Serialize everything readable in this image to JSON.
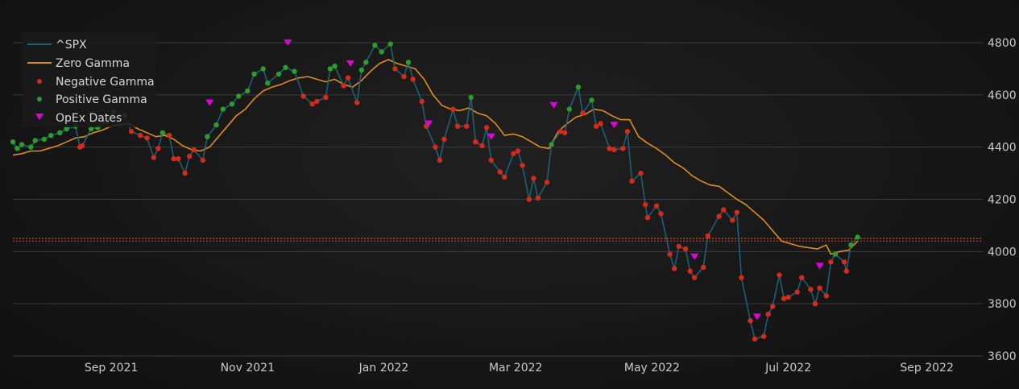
{
  "chart_data": {
    "type": "line",
    "title": "",
    "xlabel": "",
    "ylabel": "",
    "x_ticks": [
      "Sep 2021",
      "Nov 2021",
      "Jan 2022",
      "Mar 2022",
      "May 2022",
      "Jul 2022",
      "Sep 2022"
    ],
    "x_tick_dates": [
      "2021-09-01",
      "2021-11-01",
      "2022-01-01",
      "2022-03-01",
      "2022-05-01",
      "2022-07-01",
      "2022-09-01"
    ],
    "y_ticks": [
      3600,
      3800,
      4000,
      4200,
      4400,
      4600,
      4800
    ],
    "xlim": [
      "2021-07-19",
      "2022-09-26"
    ],
    "ylim": [
      3600,
      4840
    ],
    "grid": true,
    "legend_position": "top-left",
    "colors": {
      "spx": "#1f5f73",
      "zero_gamma": "#e08c1c",
      "negative": "#d62a1a",
      "positive": "#2a9d2a",
      "opex": "#e000e0",
      "hline_red": "#c0392b",
      "hline_orange": "#d35400"
    },
    "hlines": [
      {
        "value": 4040
      },
      {
        "value": 4050
      }
    ],
    "legend": [
      "^SPX",
      "Zero Gamma",
      "Negative Gamma",
      "Positive Gamma",
      "OpEx Dates"
    ],
    "spx": {
      "name": "^SPX",
      "points": [
        [
          "2021-07-19",
          4420,
          "P"
        ],
        [
          "2021-07-21",
          4395,
          "P"
        ],
        [
          "2021-07-23",
          4410,
          "P"
        ],
        [
          "2021-07-27",
          4400,
          "P"
        ],
        [
          "2021-07-29",
          4425,
          "P"
        ],
        [
          "2021-08-02",
          4430,
          "P"
        ],
        [
          "2021-08-05",
          4445,
          "P"
        ],
        [
          "2021-08-09",
          4455,
          "P"
        ],
        [
          "2021-08-12",
          4470,
          "P"
        ],
        [
          "2021-08-16",
          4480,
          "P"
        ],
        [
          "2021-08-18",
          4400,
          "N"
        ],
        [
          "2021-08-19",
          4405,
          "N"
        ],
        [
          "2021-08-23",
          4470,
          "P"
        ],
        [
          "2021-08-26",
          4475,
          "P"
        ],
        [
          "2021-08-30",
          4500,
          "P"
        ],
        [
          "2021-09-02",
          4535,
          "P"
        ],
        [
          "2021-09-07",
          4520,
          "P"
        ],
        [
          "2021-09-10",
          4460,
          "N"
        ],
        [
          "2021-09-14",
          4445,
          "N"
        ],
        [
          "2021-09-17",
          4435,
          "N"
        ],
        [
          "2021-09-20",
          4360,
          "N"
        ],
        [
          "2021-09-22",
          4395,
          "N"
        ],
        [
          "2021-09-24",
          4455,
          "P"
        ],
        [
          "2021-09-27",
          4445,
          "N"
        ],
        [
          "2021-09-29",
          4355,
          "N"
        ],
        [
          "2021-10-01",
          4355,
          "N"
        ],
        [
          "2021-10-04",
          4300,
          "N"
        ],
        [
          "2021-10-06",
          4365,
          "N"
        ],
        [
          "2021-10-08",
          4390,
          "N"
        ],
        [
          "2021-10-12",
          4350,
          "N"
        ],
        [
          "2021-10-14",
          4440,
          "P"
        ],
        [
          "2021-10-18",
          4485,
          "P"
        ],
        [
          "2021-10-21",
          4545,
          "P"
        ],
        [
          "2021-10-25",
          4565,
          "P"
        ],
        [
          "2021-10-28",
          4595,
          "P"
        ],
        [
          "2021-11-01",
          4615,
          "P"
        ],
        [
          "2021-11-04",
          4680,
          "P"
        ],
        [
          "2021-11-08",
          4700,
          "P"
        ],
        [
          "2021-11-10",
          4645,
          "P"
        ],
        [
          "2021-11-15",
          4680,
          "P"
        ],
        [
          "2021-11-18",
          4705,
          "P"
        ],
        [
          "2021-11-22",
          4690,
          "P"
        ],
        [
          "2021-11-26",
          4595,
          "N"
        ],
        [
          "2021-11-30",
          4565,
          "N"
        ],
        [
          "2021-12-02",
          4575,
          "N"
        ],
        [
          "2021-12-06",
          4590,
          "N"
        ],
        [
          "2021-12-08",
          4700,
          "P"
        ],
        [
          "2021-12-10",
          4710,
          "P"
        ],
        [
          "2021-12-14",
          4635,
          "N"
        ],
        [
          "2021-12-16",
          4665,
          "N"
        ],
        [
          "2021-12-20",
          4570,
          "N"
        ],
        [
          "2021-12-22",
          4695,
          "P"
        ],
        [
          "2021-12-24",
          4725,
          "P"
        ],
        [
          "2021-12-28",
          4790,
          "P"
        ],
        [
          "2021-12-31",
          4765,
          "P"
        ],
        [
          "2022-01-04",
          4795,
          "P"
        ],
        [
          "2022-01-06",
          4700,
          "N"
        ],
        [
          "2022-01-10",
          4670,
          "N"
        ],
        [
          "2022-01-12",
          4725,
          "P"
        ],
        [
          "2022-01-14",
          4660,
          "N"
        ],
        [
          "2022-01-18",
          4575,
          "N"
        ],
        [
          "2022-01-20",
          4480,
          "N"
        ],
        [
          "2022-01-24",
          4400,
          "N"
        ],
        [
          "2022-01-26",
          4350,
          "N"
        ],
        [
          "2022-01-28",
          4430,
          "N"
        ],
        [
          "2022-02-01",
          4545,
          "N"
        ],
        [
          "2022-02-03",
          4480,
          "N"
        ],
        [
          "2022-02-07",
          4480,
          "N"
        ],
        [
          "2022-02-09",
          4590,
          "P"
        ],
        [
          "2022-02-11",
          4420,
          "N"
        ],
        [
          "2022-02-14",
          4405,
          "N"
        ],
        [
          "2022-02-16",
          4475,
          "N"
        ],
        [
          "2022-02-18",
          4350,
          "N"
        ],
        [
          "2022-02-22",
          4305,
          "N"
        ],
        [
          "2022-02-24",
          4285,
          "N"
        ],
        [
          "2022-02-28",
          4375,
          "N"
        ],
        [
          "2022-03-02",
          4385,
          "N"
        ],
        [
          "2022-03-04",
          4330,
          "N"
        ],
        [
          "2022-03-07",
          4200,
          "N"
        ],
        [
          "2022-03-09",
          4280,
          "N"
        ],
        [
          "2022-03-11",
          4205,
          "N"
        ],
        [
          "2022-03-15",
          4265,
          "N"
        ],
        [
          "2022-03-17",
          4410,
          "P"
        ],
        [
          "2022-03-21",
          4460,
          "N"
        ],
        [
          "2022-03-23",
          4455,
          "N"
        ],
        [
          "2022-03-25",
          4545,
          "P"
        ],
        [
          "2022-03-29",
          4630,
          "P"
        ],
        [
          "2022-03-31",
          4530,
          "N"
        ],
        [
          "2022-04-04",
          4580,
          "P"
        ],
        [
          "2022-04-06",
          4480,
          "N"
        ],
        [
          "2022-04-08",
          4490,
          "N"
        ],
        [
          "2022-04-12",
          4395,
          "N"
        ],
        [
          "2022-04-14",
          4390,
          "N"
        ],
        [
          "2022-04-18",
          4395,
          "N"
        ],
        [
          "2022-04-20",
          4460,
          "N"
        ],
        [
          "2022-04-22",
          4270,
          "N"
        ],
        [
          "2022-04-26",
          4300,
          "N"
        ],
        [
          "2022-04-28",
          4180,
          "N"
        ],
        [
          "2022-04-29",
          4130,
          "N"
        ],
        [
          "2022-05-03",
          4175,
          "N"
        ],
        [
          "2022-05-05",
          4145,
          "N"
        ],
        [
          "2022-05-09",
          3990,
          "N"
        ],
        [
          "2022-05-11",
          3935,
          "N"
        ],
        [
          "2022-05-13",
          4020,
          "N"
        ],
        [
          "2022-05-16",
          4010,
          "N"
        ],
        [
          "2022-05-18",
          3925,
          "N"
        ],
        [
          "2022-05-20",
          3900,
          "N"
        ],
        [
          "2022-05-24",
          3940,
          "N"
        ],
        [
          "2022-05-26",
          4060,
          "N"
        ],
        [
          "2022-05-31",
          4135,
          "N"
        ],
        [
          "2022-06-02",
          4160,
          "N"
        ],
        [
          "2022-06-06",
          4120,
          "N"
        ],
        [
          "2022-06-08",
          4150,
          "N"
        ],
        [
          "2022-06-10",
          3900,
          "N"
        ],
        [
          "2022-06-14",
          3735,
          "N"
        ],
        [
          "2022-06-16",
          3665,
          "N"
        ],
        [
          "2022-06-20",
          3675,
          "N"
        ],
        [
          "2022-06-22",
          3760,
          "N"
        ],
        [
          "2022-06-24",
          3790,
          "N"
        ],
        [
          "2022-06-27",
          3910,
          "N"
        ],
        [
          "2022-06-29",
          3820,
          "N"
        ],
        [
          "2022-07-01",
          3825,
          "N"
        ],
        [
          "2022-07-05",
          3845,
          "N"
        ],
        [
          "2022-07-07",
          3900,
          "N"
        ],
        [
          "2022-07-11",
          3855,
          "N"
        ],
        [
          "2022-07-13",
          3800,
          "N"
        ],
        [
          "2022-07-15",
          3860,
          "N"
        ],
        [
          "2022-07-18",
          3830,
          "N"
        ],
        [
          "2022-07-20",
          3960,
          "N"
        ],
        [
          "2022-07-22",
          3990,
          "P"
        ],
        [
          "2022-07-26",
          3960,
          "N"
        ],
        [
          "2022-07-27",
          3925,
          "N"
        ],
        [
          "2022-07-29",
          4025,
          "P"
        ],
        [
          "2022-08-01",
          4055,
          "P"
        ]
      ]
    },
    "zero_gamma": {
      "name": "Zero Gamma",
      "points": [
        [
          "2021-07-19",
          4370
        ],
        [
          "2021-07-23",
          4375
        ],
        [
          "2021-07-27",
          4385
        ],
        [
          "2021-07-31",
          4385
        ],
        [
          "2021-08-04",
          4395
        ],
        [
          "2021-08-08",
          4405
        ],
        [
          "2021-08-12",
          4420
        ],
        [
          "2021-08-16",
          4435
        ],
        [
          "2021-08-20",
          4440
        ],
        [
          "2021-08-24",
          4455
        ],
        [
          "2021-08-28",
          4465
        ],
        [
          "2021-09-01",
          4480
        ],
        [
          "2021-09-05",
          4485
        ],
        [
          "2021-09-09",
          4490
        ],
        [
          "2021-09-13",
          4470
        ],
        [
          "2021-09-17",
          4455
        ],
        [
          "2021-09-21",
          4440
        ],
        [
          "2021-09-25",
          4445
        ],
        [
          "2021-09-29",
          4430
        ],
        [
          "2021-10-03",
          4405
        ],
        [
          "2021-10-07",
          4390
        ],
        [
          "2021-10-11",
          4385
        ],
        [
          "2021-10-15",
          4400
        ],
        [
          "2021-10-19",
          4440
        ],
        [
          "2021-10-23",
          4480
        ],
        [
          "2021-10-27",
          4520
        ],
        [
          "2021-10-31",
          4545
        ],
        [
          "2021-11-04",
          4585
        ],
        [
          "2021-11-08",
          4615
        ],
        [
          "2021-11-12",
          4630
        ],
        [
          "2021-11-16",
          4640
        ],
        [
          "2021-11-20",
          4655
        ],
        [
          "2021-11-24",
          4665
        ],
        [
          "2021-11-28",
          4670
        ],
        [
          "2021-12-02",
          4660
        ],
        [
          "2021-12-06",
          4650
        ],
        [
          "2021-12-10",
          4660
        ],
        [
          "2021-12-14",
          4640
        ],
        [
          "2021-12-18",
          4630
        ],
        [
          "2021-12-22",
          4655
        ],
        [
          "2021-12-26",
          4690
        ],
        [
          "2021-12-30",
          4720
        ],
        [
          "2022-01-03",
          4735
        ],
        [
          "2022-01-07",
          4720
        ],
        [
          "2022-01-11",
          4710
        ],
        [
          "2022-01-15",
          4700
        ],
        [
          "2022-01-19",
          4660
        ],
        [
          "2022-01-23",
          4600
        ],
        [
          "2022-01-27",
          4560
        ],
        [
          "2022-01-31",
          4545
        ],
        [
          "2022-02-04",
          4540
        ],
        [
          "2022-02-08",
          4550
        ],
        [
          "2022-02-12",
          4530
        ],
        [
          "2022-02-16",
          4520
        ],
        [
          "2022-02-20",
          4490
        ],
        [
          "2022-02-24",
          4445
        ],
        [
          "2022-02-28",
          4450
        ],
        [
          "2022-03-04",
          4440
        ],
        [
          "2022-03-08",
          4420
        ],
        [
          "2022-03-12",
          4400
        ],
        [
          "2022-03-16",
          4395
        ],
        [
          "2022-03-20",
          4460
        ],
        [
          "2022-03-24",
          4490
        ],
        [
          "2022-03-28",
          4515
        ],
        [
          "2022-04-01",
          4525
        ],
        [
          "2022-04-05",
          4545
        ],
        [
          "2022-04-09",
          4540
        ],
        [
          "2022-04-13",
          4520
        ],
        [
          "2022-04-17",
          4505
        ],
        [
          "2022-04-21",
          4505
        ],
        [
          "2022-04-25",
          4440
        ],
        [
          "2022-04-29",
          4415
        ],
        [
          "2022-05-03",
          4395
        ],
        [
          "2022-05-07",
          4370
        ],
        [
          "2022-05-11",
          4340
        ],
        [
          "2022-05-15",
          4320
        ],
        [
          "2022-05-19",
          4290
        ],
        [
          "2022-05-23",
          4270
        ],
        [
          "2022-05-27",
          4255
        ],
        [
          "2022-05-31",
          4250
        ],
        [
          "2022-06-04",
          4225
        ],
        [
          "2022-06-08",
          4200
        ],
        [
          "2022-06-12",
          4180
        ],
        [
          "2022-06-16",
          4150
        ],
        [
          "2022-06-20",
          4120
        ],
        [
          "2022-06-24",
          4080
        ],
        [
          "2022-06-28",
          4040
        ],
        [
          "2022-07-02",
          4030
        ],
        [
          "2022-07-06",
          4020
        ],
        [
          "2022-07-10",
          4015
        ],
        [
          "2022-07-14",
          4010
        ],
        [
          "2022-07-18",
          4025
        ],
        [
          "2022-07-20",
          3990
        ],
        [
          "2022-07-24",
          4000
        ],
        [
          "2022-07-28",
          4005
        ],
        [
          "2022-08-01",
          4040
        ]
      ]
    },
    "opex_dates": [
      [
        "2021-10-15",
        4570
      ],
      [
        "2021-11-19",
        4800
      ],
      [
        "2021-12-17",
        4720
      ],
      [
        "2022-01-21",
        4490
      ],
      [
        "2022-02-18",
        4440
      ],
      [
        "2022-03-18",
        4560
      ],
      [
        "2022-04-14",
        4485
      ],
      [
        "2022-05-20",
        3980
      ],
      [
        "2022-06-17",
        3750
      ],
      [
        "2022-07-15",
        3945
      ]
    ]
  }
}
